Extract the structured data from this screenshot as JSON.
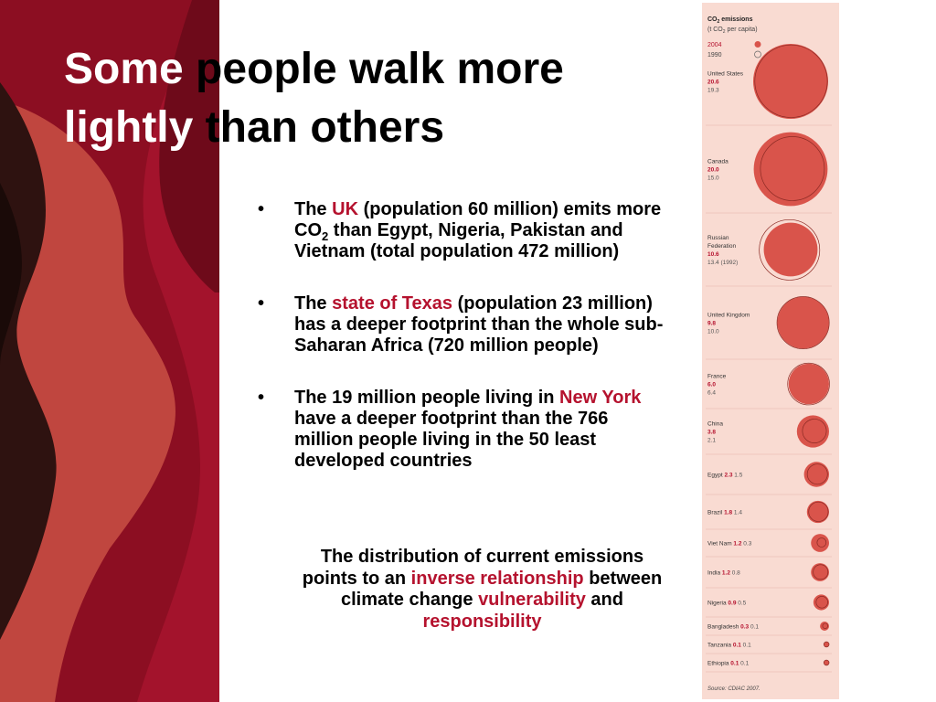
{
  "colors": {
    "accent": "#b5122e",
    "panel_bg": "#f9dbd2",
    "bubble": "#d9544b",
    "bubble_outline": "#8b2a24"
  },
  "title": {
    "line1_highlight": "Some",
    "line1_rest": " people walk more",
    "line2_highlight": "lightly",
    "line2_rest": " than others"
  },
  "bullet_symbol": "•",
  "bullets": [
    {
      "pre": "The ",
      "hl": "UK",
      "a": " (population 60 million) emits more CO",
      "sub": "2",
      "b": " than Egypt, Nigeria, Pakistan and Vietnam (total population 472 million)"
    },
    {
      "pre": "The ",
      "hl": "state of Texas",
      "a": " (population 23 million) has a deeper footprint than the whole sub-Saharan Africa (720 million people)"
    },
    {
      "pre": "The 19 million people living in ",
      "hl": "New York",
      "a": " have a deeper footprint than the 766 million people living in the 50 least developed countries"
    }
  ],
  "conclusion": {
    "p1": "The distribution of current emissions points to an ",
    "hl1": "inverse relationship",
    "p2": " between climate change ",
    "hl2": "vulnerability",
    "p3": " and ",
    "hl3": "responsibility"
  },
  "chart_data": {
    "type": "bubble",
    "title_prefix": "CO",
    "title_sub": "2",
    "title_suffix": " emissions",
    "subtitle_prefix": "(t CO",
    "subtitle_sub": "2",
    "subtitle_suffix": " per capita)",
    "legend": [
      {
        "label": "2004",
        "style": "filled"
      },
      {
        "label": "1990",
        "style": "outline"
      }
    ],
    "countries": [
      {
        "name": [
          "United States"
        ],
        "v2004": 20.6,
        "v1990": 19.3,
        "l2004": "20.6",
        "l1990": "19.3"
      },
      {
        "name": [
          "Canada"
        ],
        "v2004": 20.0,
        "v1990": 15.0,
        "l2004": "20.0",
        "l1990": "15.0"
      },
      {
        "name": [
          "Russian",
          "Federation"
        ],
        "v2004": 10.6,
        "v1990": 13.4,
        "l2004": "10.6",
        "l1990": "13.4 (1992)"
      },
      {
        "name": [
          "United Kingdom"
        ],
        "v2004": 9.8,
        "v1990": 10.0,
        "l2004": "9.8",
        "l1990": "10.0"
      },
      {
        "name": [
          "France"
        ],
        "v2004": 6.0,
        "v1990": 6.4,
        "l2004": "6.0",
        "l1990": "6.4"
      },
      {
        "name": [
          "China"
        ],
        "v2004": 3.8,
        "v1990": 2.1,
        "l2004": "3.8",
        "l1990": "2.1"
      },
      {
        "name": [
          "Egypt"
        ],
        "v2004": 2.3,
        "v1990": 1.5,
        "l2004": "2.3",
        "l1990": "1.5"
      },
      {
        "name": [
          "Brazil"
        ],
        "v2004": 1.8,
        "v1990": 1.4,
        "l2004": "1.8",
        "l1990": "1.4"
      },
      {
        "name": [
          "Viet Nam"
        ],
        "v2004": 1.2,
        "v1990": 0.3,
        "l2004": "1.2",
        "l1990": "0.3"
      },
      {
        "name": [
          "India"
        ],
        "v2004": 1.2,
        "v1990": 0.8,
        "l2004": "1.2",
        "l1990": "0.8"
      },
      {
        "name": [
          "Nigeria"
        ],
        "v2004": 0.9,
        "v1990": 0.5,
        "l2004": "0.9",
        "l1990": "0.5"
      },
      {
        "name": [
          "Bangladesh"
        ],
        "v2004": 0.3,
        "v1990": 0.1,
        "l2004": "0.3",
        "l1990": "0.1"
      },
      {
        "name": [
          "Tanzania"
        ],
        "v2004": 0.1,
        "v1990": 0.1,
        "l2004": "0.1",
        "l1990": "0.1"
      },
      {
        "name": [
          "Ethiopia"
        ],
        "v2004": 0.1,
        "v1990": 0.1,
        "l2004": "0.1",
        "l1990": "0.1"
      }
    ],
    "source": "Source: CDIAC 2007."
  }
}
